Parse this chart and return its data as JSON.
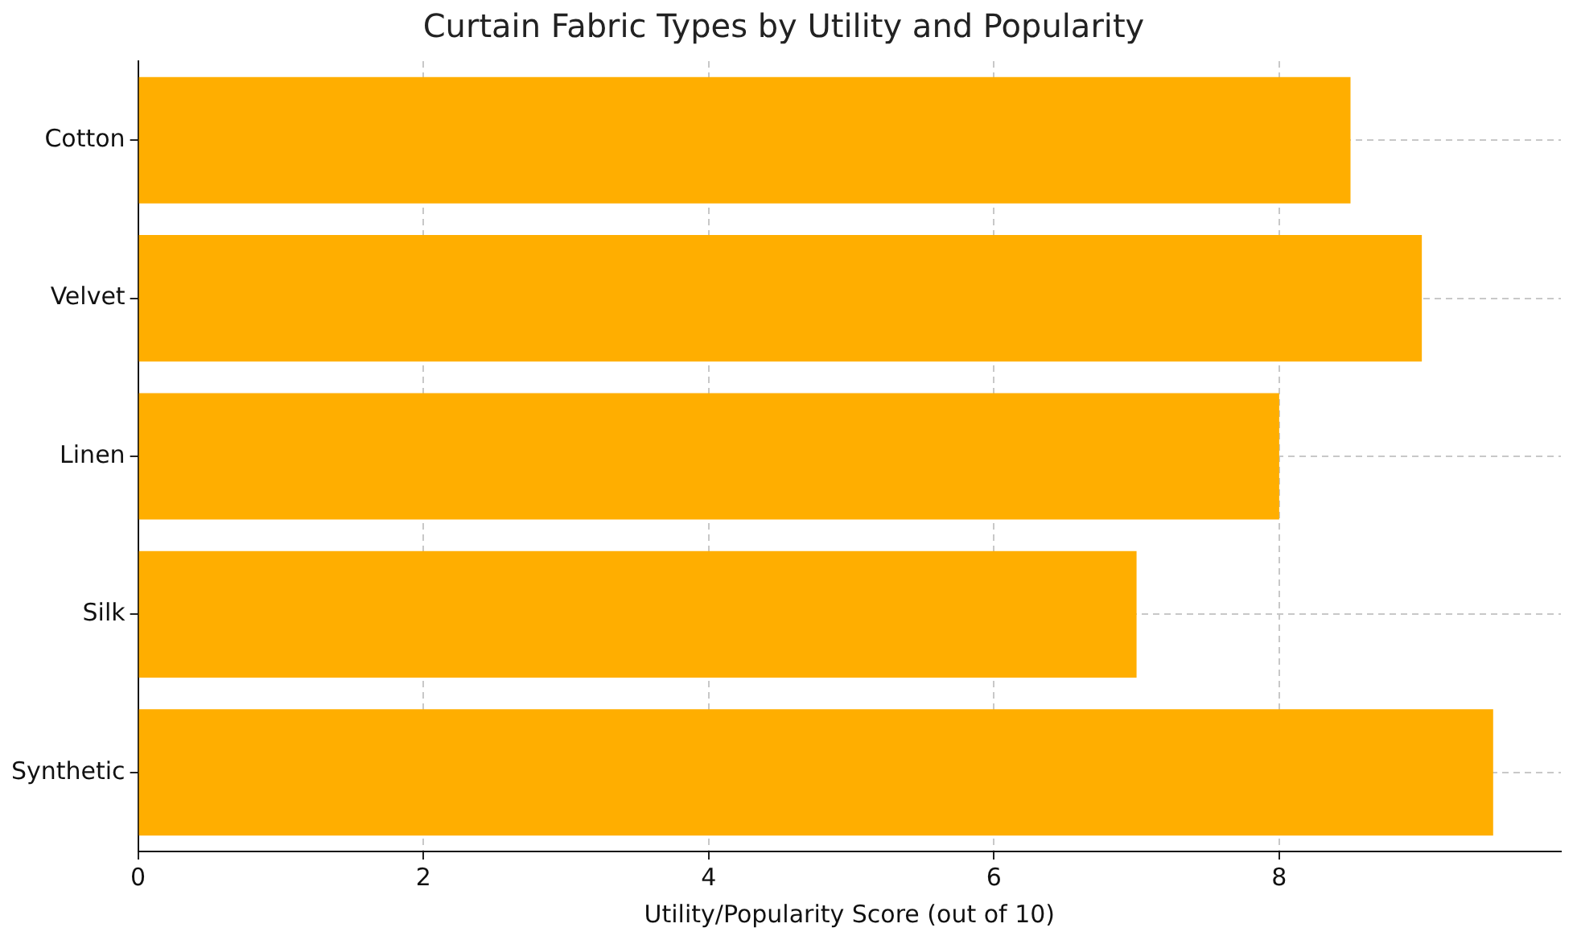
{
  "chart_data": {
    "type": "bar",
    "orientation": "horizontal",
    "title": "Curtain Fabric Types by Utility and Popularity",
    "xlabel": "Utility/Popularity Score (out of 10)",
    "categories": [
      "Cotton",
      "Velvet",
      "Linen",
      "Silk",
      "Synthetic"
    ],
    "values": [
      8.5,
      9,
      8,
      7,
      9.5
    ],
    "color": "#ffae00",
    "xlim": [
      0,
      9.975
    ],
    "xticks": [
      0,
      2,
      4,
      6,
      8
    ],
    "grid": true,
    "legend": false
  }
}
